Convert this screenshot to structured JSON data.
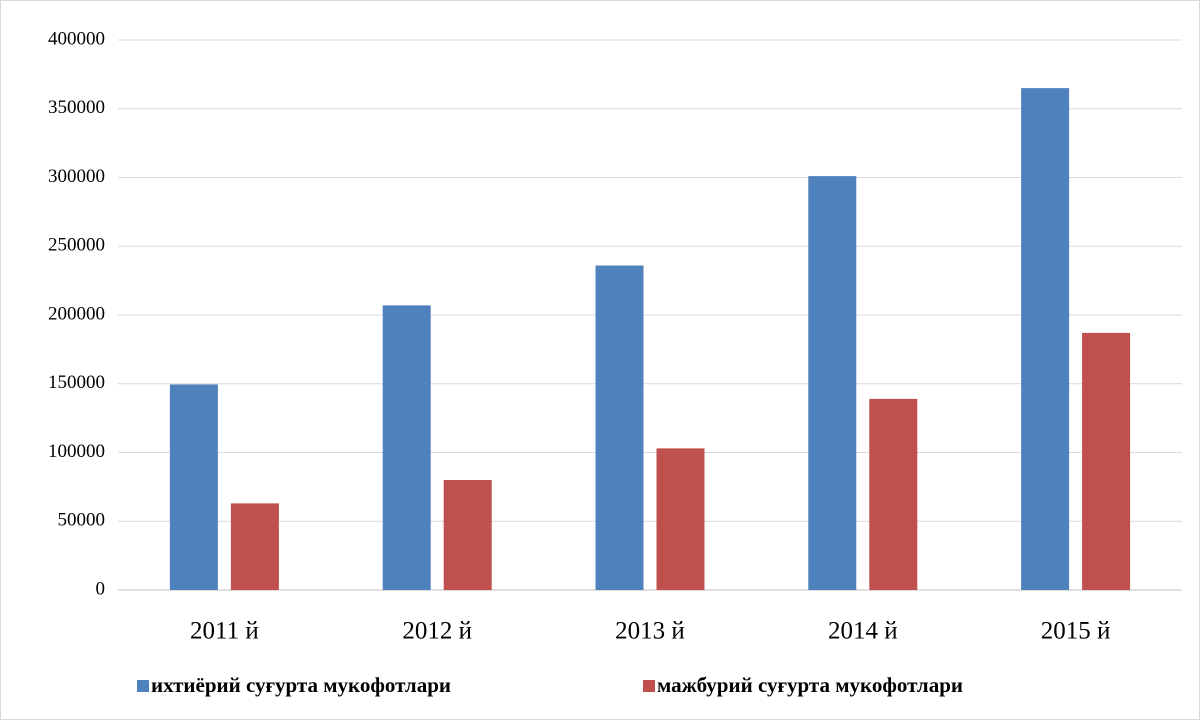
{
  "chart_data": {
    "type": "bar",
    "categories": [
      "2011 й",
      "2012 й",
      "2013 й",
      "2014 й",
      "2015 й"
    ],
    "series": [
      {
        "name": "ихтиёрий суғурта мукофотлари",
        "color": "#4f81bd",
        "values": [
          149500,
          207000,
          236000,
          301000,
          365000
        ]
      },
      {
        "name": "мажбурий суғурта мукофотлари",
        "color": "#c0504d",
        "values": [
          63000,
          80000,
          103000,
          139000,
          187000
        ]
      }
    ],
    "ylim": [
      0,
      400000
    ],
    "yticks": [
      0,
      50000,
      100000,
      150000,
      200000,
      250000,
      300000,
      350000,
      400000
    ],
    "grid": true,
    "legend": "bottom"
  }
}
